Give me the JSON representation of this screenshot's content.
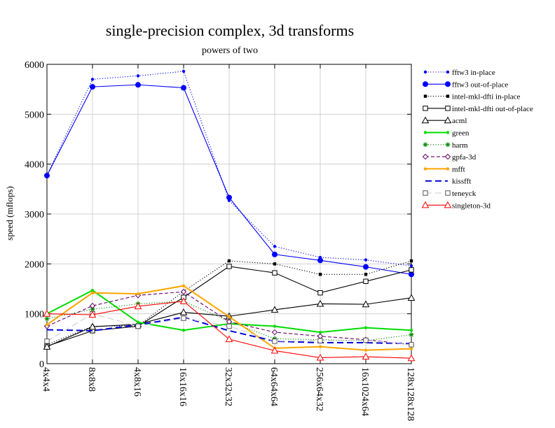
{
  "chart_data": {
    "type": "line",
    "title": "single-precision complex, 3d transforms",
    "subtitle": "powers of two",
    "xlabel": "",
    "ylabel": "speed (mflops)",
    "ylim": [
      0,
      6000
    ],
    "yticks": [
      0,
      1000,
      2000,
      3000,
      4000,
      5000,
      6000
    ],
    "grid": true,
    "legend_position": "right",
    "categories": [
      "4x4x4",
      "8x8x8",
      "4x8x16",
      "16x16x16",
      "32x32x32",
      "64x64x64",
      "256x64x32",
      "16x1024x64",
      "128x128x128"
    ],
    "series": [
      {
        "name": "fftw3 in-place",
        "color": "#0000ff",
        "dash": "dotted",
        "marker": "dot-small",
        "values": [
          3780,
          5700,
          5770,
          5860,
          3270,
          2350,
          2130,
          2080,
          1960
        ]
      },
      {
        "name": "fftw3 out-of-place",
        "color": "#0000ff",
        "dash": "solid",
        "marker": "dot-large",
        "values": [
          3770,
          5550,
          5590,
          5530,
          3330,
          2190,
          2070,
          1940,
          1790
        ]
      },
      {
        "name": "intel-mkl-dfti in-place",
        "color": "#000000",
        "dash": "dotted",
        "marker": "square-filled",
        "values": [
          380,
          750,
          760,
          1450,
          2060,
          2000,
          1790,
          1790,
          2060
        ]
      },
      {
        "name": "intel-mkl-dfti out-of-place",
        "color": "#000000",
        "dash": "solid",
        "marker": "square-open",
        "values": [
          350,
          660,
          750,
          1330,
          1950,
          1820,
          1420,
          1650,
          1880
        ]
      },
      {
        "name": "acml",
        "color": "#000000",
        "dash": "solid",
        "marker": "triangle-open",
        "values": [
          340,
          740,
          790,
          1030,
          950,
          1080,
          1200,
          1190,
          1320
        ]
      },
      {
        "name": "green",
        "color": "#00dd00",
        "dash": "solid",
        "marker": "dot-small",
        "values": [
          1000,
          1470,
          830,
          670,
          800,
          750,
          630,
          720,
          670
        ]
      },
      {
        "name": "harm",
        "color": "#008800",
        "dash": "dotted",
        "marker": "star",
        "values": [
          900,
          1090,
          1200,
          1250,
          850,
          500,
          480,
          460,
          580
        ]
      },
      {
        "name": "gpfa-3d",
        "color": "#660066",
        "dash": "dashed",
        "marker": "diamond-open",
        "values": [
          750,
          1160,
          1370,
          1440,
          840,
          630,
          550,
          480,
          380
        ]
      },
      {
        "name": "mfft",
        "color": "#ffa500",
        "dash": "solid",
        "marker": "dot-small",
        "values": [
          780,
          1420,
          1400,
          1560,
          940,
          310,
          340,
          270,
          300
        ]
      },
      {
        "name": "kissfft",
        "color": "#0000dd",
        "dash": "longdash",
        "marker": "none",
        "values": [
          680,
          660,
          780,
          930,
          660,
          450,
          420,
          420,
          400
        ]
      },
      {
        "name": "teneyck",
        "color": "#cccccc",
        "dash": "longdash",
        "marker": "square-open",
        "values": [
          450,
          1000,
          750,
          910,
          750,
          450,
          460,
          470,
          380
        ]
      },
      {
        "name": "singleton-3d",
        "color": "#ff0000",
        "dash": "solid",
        "marker": "triangle-open",
        "values": [
          1000,
          980,
          1150,
          1250,
          490,
          260,
          120,
          140,
          110
        ]
      }
    ]
  }
}
